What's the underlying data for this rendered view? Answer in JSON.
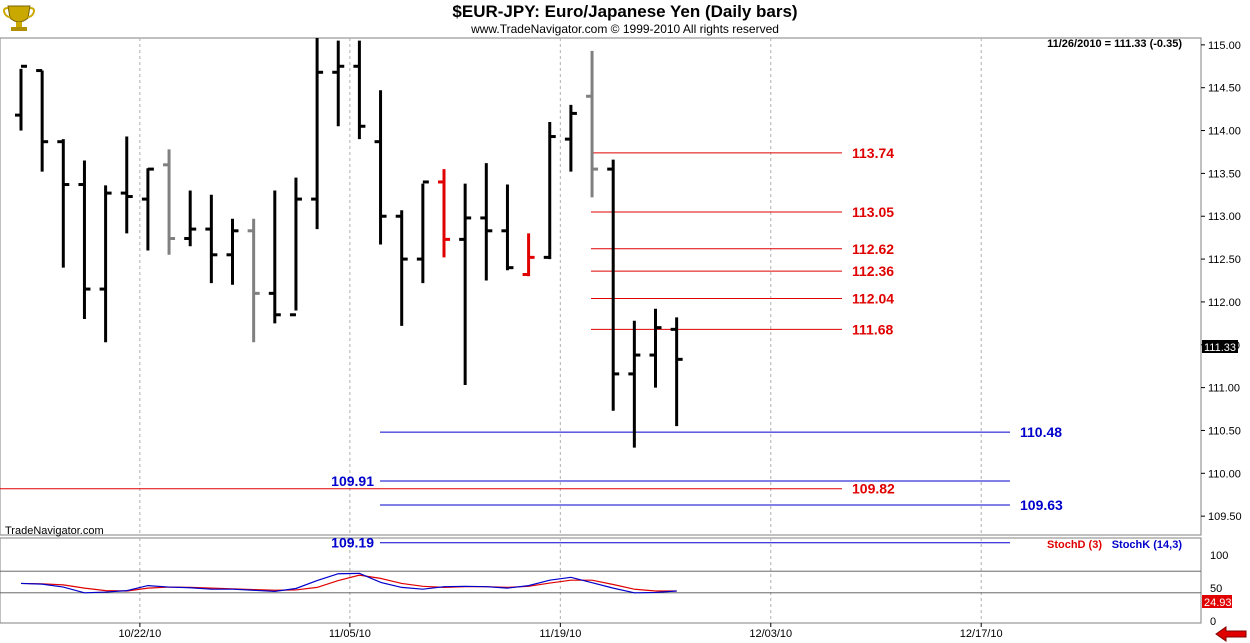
{
  "header": {
    "title": "$EUR-JPY:  Euro/Japanese Yen  (Daily bars)",
    "subtitle": "www.TradeNavigator.com © 1999-2010 All rights reserved",
    "last_quote": "11/26/2010 = 111.33 (-0.35)",
    "watermark": "TradeNavigator.com",
    "logo_icon": "trophy-icon"
  },
  "colors": {
    "up_bar": "#000000",
    "neutral_bar": "#808080",
    "highlight_bar": "#e00000",
    "red_level": "#e00000",
    "blue_level": "#0000cc",
    "stoch_d": "#e00000",
    "stoch_k": "#0000cc",
    "grid": "#b0b0b0"
  },
  "chart_data": [
    {
      "type": "ohlc",
      "name": "price",
      "y_axis": {
        "min": 109.28,
        "max": 115.08,
        "ticks": [
          "115.00",
          "114.50",
          "114.00",
          "113.50",
          "113.00",
          "112.50",
          "112.00",
          "111.50",
          "111.00",
          "110.50",
          "110.00",
          "109.50"
        ]
      },
      "x_axis": {
        "ticks": [
          "10/22/10",
          "11/05/10",
          "11/19/10",
          "12/03/10",
          "12/17/10"
        ]
      },
      "last_price_label": "111.33",
      "bars": [
        {
          "o": 114.18,
          "h": 114.72,
          "l": 114.0,
          "c": 114.75,
          "color": "black"
        },
        {
          "o": 114.7,
          "h": 114.7,
          "l": 113.52,
          "c": 113.87,
          "color": "black"
        },
        {
          "o": 113.87,
          "h": 113.9,
          "l": 112.4,
          "c": 113.37,
          "color": "black"
        },
        {
          "o": 113.37,
          "h": 113.65,
          "l": 111.8,
          "c": 112.15,
          "color": "black"
        },
        {
          "o": 112.15,
          "h": 113.36,
          "l": 111.53,
          "c": 113.27,
          "color": "black"
        },
        {
          "o": 113.27,
          "h": 113.93,
          "l": 112.8,
          "c": 113.23,
          "color": "black"
        },
        {
          "o": 113.2,
          "h": 113.56,
          "l": 112.6,
          "c": 113.55,
          "color": "black"
        },
        {
          "o": 113.6,
          "h": 113.78,
          "l": 112.55,
          "c": 112.74,
          "color": "gray"
        },
        {
          "o": 112.74,
          "h": 113.3,
          "l": 112.65,
          "c": 112.85,
          "color": "black"
        },
        {
          "o": 112.85,
          "h": 113.25,
          "l": 112.22,
          "c": 112.55,
          "color": "black"
        },
        {
          "o": 112.55,
          "h": 112.97,
          "l": 112.2,
          "c": 112.83,
          "color": "black"
        },
        {
          "o": 112.83,
          "h": 112.97,
          "l": 111.53,
          "c": 112.1,
          "color": "gray"
        },
        {
          "o": 112.1,
          "h": 113.3,
          "l": 111.75,
          "c": 111.85,
          "color": "black"
        },
        {
          "o": 111.85,
          "h": 113.45,
          "l": 111.9,
          "c": 113.2,
          "color": "black"
        },
        {
          "o": 113.2,
          "h": 115.08,
          "l": 112.85,
          "c": 114.68,
          "color": "black"
        },
        {
          "o": 114.68,
          "h": 115.05,
          "l": 114.05,
          "c": 114.75,
          "color": "black"
        },
        {
          "o": 114.75,
          "h": 115.05,
          "l": 113.9,
          "c": 114.05,
          "color": "black"
        },
        {
          "o": 113.87,
          "h": 114.47,
          "l": 112.67,
          "c": 113.0,
          "color": "black"
        },
        {
          "o": 113.0,
          "h": 113.07,
          "l": 111.72,
          "c": 112.5,
          "color": "black"
        },
        {
          "o": 112.5,
          "h": 113.38,
          "l": 112.22,
          "c": 113.4,
          "color": "black"
        },
        {
          "o": 113.4,
          "h": 113.55,
          "l": 112.52,
          "c": 112.73,
          "color": "red"
        },
        {
          "o": 112.73,
          "h": 113.38,
          "l": 111.03,
          "c": 112.98,
          "color": "black"
        },
        {
          "o": 112.98,
          "h": 113.62,
          "l": 112.25,
          "c": 112.83,
          "color": "black"
        },
        {
          "o": 112.83,
          "h": 113.37,
          "l": 112.37,
          "c": 112.4,
          "color": "black"
        },
        {
          "o": 112.32,
          "h": 112.8,
          "l": 112.3,
          "c": 112.52,
          "color": "red"
        },
        {
          "o": 112.52,
          "h": 114.1,
          "l": 112.5,
          "c": 113.93,
          "color": "black"
        },
        {
          "o": 113.9,
          "h": 114.3,
          "l": 113.52,
          "c": 114.2,
          "color": "black"
        },
        {
          "o": 114.4,
          "h": 114.93,
          "l": 113.22,
          "c": 113.55,
          "color": "gray"
        },
        {
          "o": 113.55,
          "h": 113.66,
          "l": 110.73,
          "c": 111.16,
          "color": "black"
        },
        {
          "o": 111.16,
          "h": 111.78,
          "l": 110.3,
          "c": 111.38,
          "color": "black"
        },
        {
          "o": 111.38,
          "h": 111.92,
          "l": 111.0,
          "c": 111.7,
          "color": "black"
        },
        {
          "o": 111.68,
          "h": 111.82,
          "l": 110.55,
          "c": 111.33,
          "color": "black"
        }
      ],
      "levels": [
        {
          "price": 113.74,
          "label": "113.74",
          "color": "red"
        },
        {
          "price": 113.05,
          "label": "113.05",
          "color": "red"
        },
        {
          "price": 112.62,
          "label": "112.62",
          "color": "red"
        },
        {
          "price": 112.36,
          "label": "112.36",
          "color": "red"
        },
        {
          "price": 112.04,
          "label": "112.04",
          "color": "red"
        },
        {
          "price": 111.68,
          "label": "111.68",
          "color": "red"
        },
        {
          "price": 110.48,
          "label": "110.48",
          "color": "blue"
        },
        {
          "price": 109.91,
          "label": "109.91",
          "color": "blue"
        },
        {
          "price": 109.82,
          "label": "109.82",
          "color": "red"
        },
        {
          "price": 109.63,
          "label": "109.63",
          "color": "blue"
        },
        {
          "price": 109.19,
          "label": "109.19",
          "color": "blue"
        }
      ]
    },
    {
      "type": "line",
      "name": "stochastics",
      "y_axis": {
        "min": 0,
        "max": 100,
        "ticks": [
          "100",
          "50",
          "0"
        ]
      },
      "legend": [
        "StochD (3)",
        "StochK (14,3)"
      ],
      "last_value_label": "24.93",
      "series": [
        {
          "name": "StochD (3)",
          "values": [
            46,
            45,
            42,
            33,
            26,
            25,
            33,
            36,
            35,
            33,
            31,
            29,
            27,
            28,
            35,
            54,
            69,
            60,
            46,
            38,
            35,
            37,
            37,
            35,
            38,
            47,
            55,
            55,
            43,
            30,
            25,
            25
          ]
        },
        {
          "name": "StochK (14,3)",
          "values": [
            46,
            44,
            36,
            20,
            22,
            26,
            40,
            36,
            34,
            30,
            30,
            27,
            24,
            32,
            54,
            73,
            74,
            49,
            35,
            30,
            37,
            38,
            37,
            33,
            40,
            55,
            63,
            48,
            33,
            20,
            21,
            25
          ]
        }
      ]
    }
  ]
}
